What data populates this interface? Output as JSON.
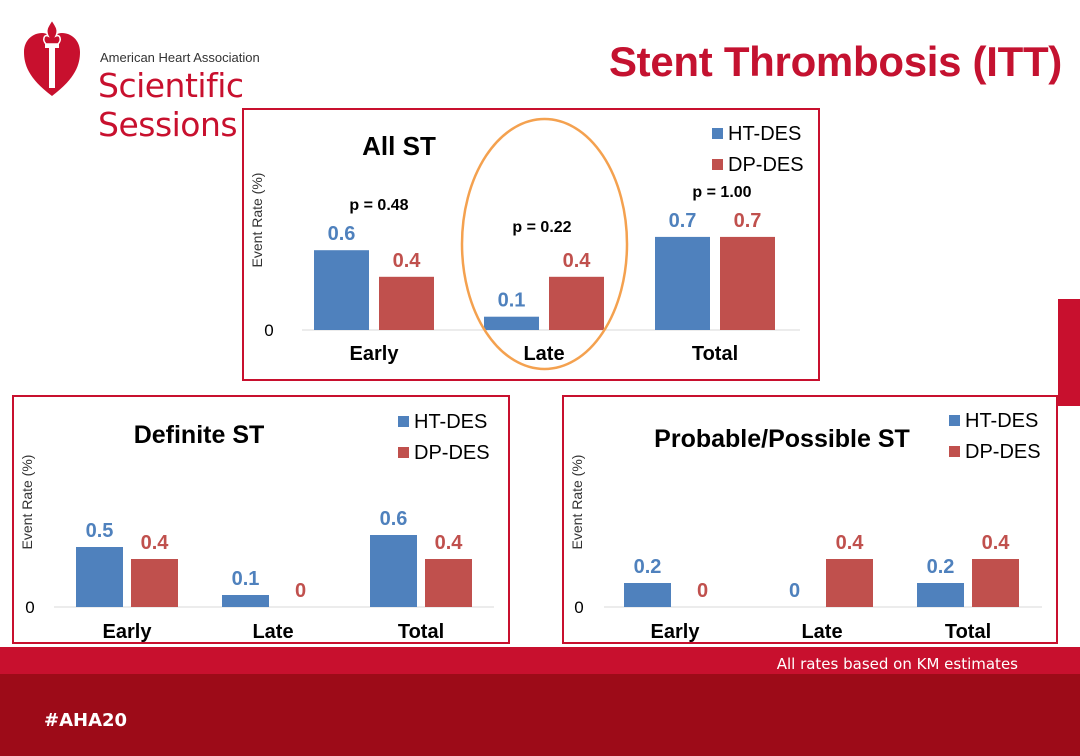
{
  "header": {
    "logo_line1": "American Heart Association",
    "logo_line2": "Scientific Sessions",
    "title": "Stent Thrombosis (ITT)"
  },
  "colors": {
    "ht": "#4f81bd",
    "dp": "#c0504d",
    "brand": "#c8102e",
    "highlight": "#f4a14f"
  },
  "chart_data": [
    {
      "id": "all",
      "type": "bar",
      "title": "All ST",
      "ylabel": "Event Rate (%)",
      "ytick": "0",
      "ylim": [
        0,
        1.0
      ],
      "categories": [
        "Early",
        "Late",
        "Total"
      ],
      "series": [
        {
          "name": "HT-DES",
          "values": [
            0.6,
            0.1,
            0.7
          ],
          "labels": [
            "0.6",
            "0.1",
            "0.7"
          ]
        },
        {
          "name": "DP-DES",
          "values": [
            0.4,
            0.4,
            0.7
          ],
          "labels": [
            "0.4",
            "0.4",
            "0.7"
          ]
        }
      ],
      "annotations": [
        "p = 0.48",
        "p = 0.22",
        "p = 1.00"
      ],
      "legend": "top-right"
    },
    {
      "id": "definite",
      "type": "bar",
      "title": "Definite ST",
      "ylabel": "Event Rate (%)",
      "ytick": "0",
      "ylim": [
        0,
        1.0
      ],
      "categories": [
        "Early",
        "Late",
        "Total"
      ],
      "series": [
        {
          "name": "HT-DES",
          "values": [
            0.5,
            0.1,
            0.6
          ],
          "labels": [
            "0.5",
            "0.1",
            "0.6"
          ]
        },
        {
          "name": "DP-DES",
          "values": [
            0.4,
            0,
            0.4
          ],
          "labels": [
            "0.4",
            "0",
            "0.4"
          ]
        }
      ],
      "legend": "top-right"
    },
    {
      "id": "probable",
      "type": "bar",
      "title": "Probable/Possible ST",
      "ylabel": "Event Rate (%)",
      "ytick": "0",
      "ylim": [
        0,
        1.0
      ],
      "categories": [
        "Early",
        "Late",
        "Total"
      ],
      "series": [
        {
          "name": "HT-DES",
          "values": [
            0.2,
            0,
            0.2
          ],
          "labels": [
            "0.2",
            "0",
            "0.2"
          ]
        },
        {
          "name": "DP-DES",
          "values": [
            0,
            0.4,
            0.4
          ],
          "labels": [
            "0",
            "0.4",
            "0.4"
          ]
        }
      ],
      "legend": "top-right"
    }
  ],
  "footer": {
    "note": "All rates based on KM estimates",
    "hashtag": "#AHA20"
  }
}
